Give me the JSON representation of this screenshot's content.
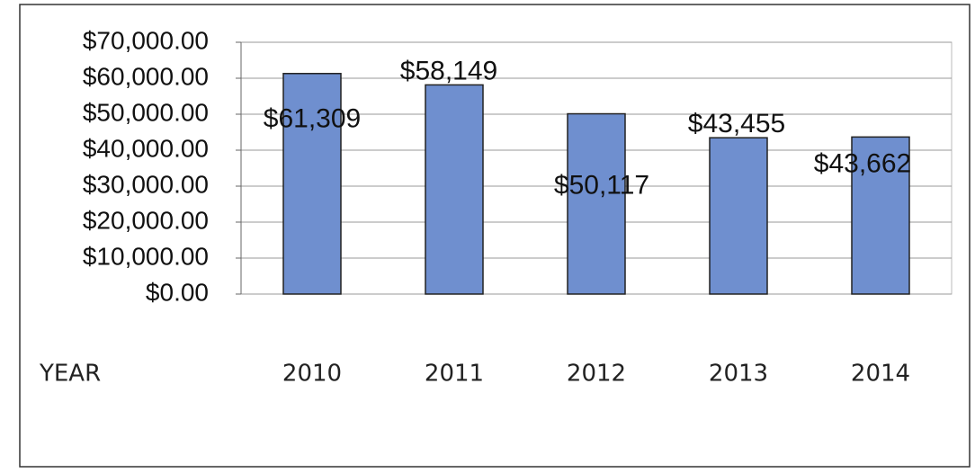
{
  "chart_data": {
    "type": "bar",
    "categories": [
      "2010",
      "2011",
      "2012",
      "2013",
      "2014"
    ],
    "x_label": "YEAR",
    "values": [
      61309,
      58149,
      50117,
      43455,
      43662
    ],
    "value_labels": [
      "$61,309",
      "$58,149",
      "$50,117",
      "$43,455",
      "$43,662"
    ],
    "color": "#6f8fcf",
    "ylim": [
      0,
      70000
    ],
    "yticks": [
      {
        "value": 0,
        "label": "$0.00"
      },
      {
        "value": 10000,
        "label": "$10,000.00"
      },
      {
        "value": 20000,
        "label": "$20,000.00"
      },
      {
        "value": 30000,
        "label": "$30,000.00"
      },
      {
        "value": 40000,
        "label": "$40,000.00"
      },
      {
        "value": 50000,
        "label": "$50,000.00"
      },
      {
        "value": 60000,
        "label": "$60,000.00"
      },
      {
        "value": 70000,
        "label": "$70,000.00"
      }
    ],
    "grid": true
  }
}
